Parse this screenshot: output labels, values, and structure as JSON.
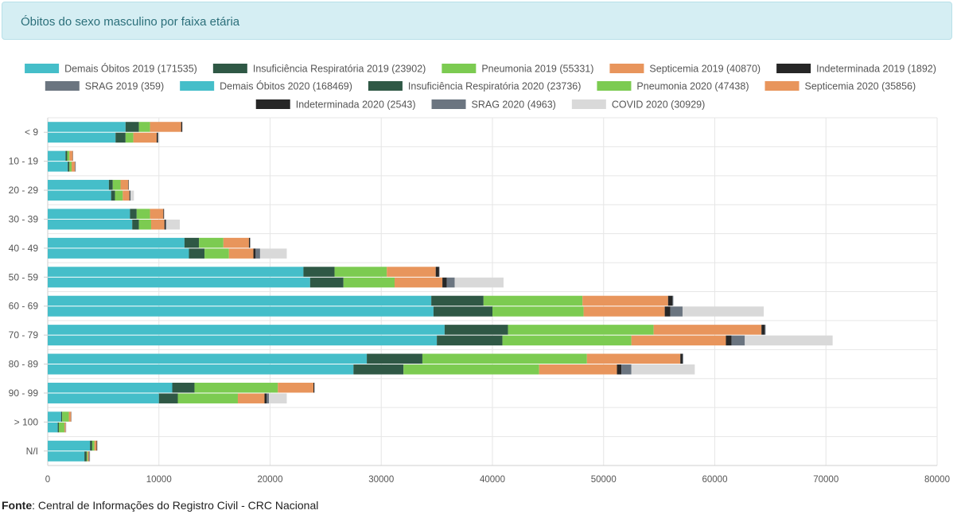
{
  "header": {
    "title": "Óbitos do sexo masculino por faixa etária"
  },
  "footer": {
    "label": "Fonte",
    "text": ": Central de Informações do Registro Civil - CRC Nacional"
  },
  "colors": {
    "demais": "#45bec9",
    "insuf": "#2f5845",
    "pneu": "#7ccb51",
    "septi": "#e8955c",
    "indet": "#262626",
    "srag": "#6b7580",
    "covid": "#d9d9d9"
  },
  "chart_data": {
    "type": "bar",
    "orientation": "horizontal",
    "stacked": true,
    "grid": true,
    "legend_position": "top",
    "xlim": [
      0,
      80000
    ],
    "x_ticks": [
      "0",
      "10000",
      "20000",
      "30000",
      "40000",
      "50000",
      "60000",
      "70000",
      "80000"
    ],
    "categories": [
      "< 9",
      "10 - 19",
      "20 - 29",
      "30 - 39",
      "40 - 49",
      "50 - 59",
      "60 - 69",
      "70 - 79",
      "80 - 89",
      "90 - 99",
      "> 100",
      "N/I"
    ],
    "legend": [
      {
        "label": "Demais Óbitos 2019 (171535)",
        "color_key": "demais"
      },
      {
        "label": "Insuficiência Respiratória 2019 (23902)",
        "color_key": "insuf"
      },
      {
        "label": "Pneumonia 2019 (55331)",
        "color_key": "pneu"
      },
      {
        "label": "Septicemia 2019 (40870)",
        "color_key": "septi"
      },
      {
        "label": "Indeterminada 2019 (1892)",
        "color_key": "indet"
      },
      {
        "label": "SRAG 2019 (359)",
        "color_key": "srag"
      },
      {
        "label": "Demais Óbitos 2020 (168469)",
        "color_key": "demais"
      },
      {
        "label": "Insuficiência Respiratória 2020 (23736)",
        "color_key": "insuf"
      },
      {
        "label": "Pneumonia 2020 (47438)",
        "color_key": "pneu"
      },
      {
        "label": "Septicemia 2020 (35856)",
        "color_key": "septi"
      },
      {
        "label": "Indeterminada 2020 (2543)",
        "color_key": "indet"
      },
      {
        "label": "SRAG 2020 (4963)",
        "color_key": "srag"
      },
      {
        "label": "COVID 2020 (30929)",
        "color_key": "covid"
      }
    ],
    "stacks": [
      {
        "stack": "2019",
        "series": [
          {
            "name": "Demais Óbitos 2019 (171535)",
            "color_key": "demais",
            "values": [
              7000,
              1600,
              5500,
              7400,
              12300,
              23000,
              34500,
              35700,
              28700,
              11200,
              1200,
              3800
            ]
          },
          {
            "name": "Insuficiência Respiratória 2019 (23902)",
            "color_key": "insuf",
            "values": [
              1200,
              150,
              350,
              600,
              1300,
              2800,
              4700,
              5700,
              5000,
              2000,
              100,
              200
            ]
          },
          {
            "name": "Pneumonia 2019 (55331)",
            "color_key": "pneu",
            "values": [
              1000,
              200,
              700,
              1200,
              2200,
              4700,
              8900,
              13100,
              14800,
              7500,
              600,
              200
            ]
          },
          {
            "name": "Septicemia 2019 (40870)",
            "color_key": "septi",
            "values": [
              2800,
              300,
              700,
              1200,
              2300,
              4400,
              7700,
              9700,
              8400,
              3200,
              200,
              200
            ]
          },
          {
            "name": "Indeterminada 2019 (1892)",
            "color_key": "indet",
            "values": [
              100,
              20,
              40,
              60,
              100,
              300,
              400,
              300,
              200,
              80,
              20,
              50
            ]
          },
          {
            "name": "SRAG 2019 (359)",
            "color_key": "srag",
            "values": [
              10,
              5,
              5,
              10,
              20,
              40,
              70,
              70,
              60,
              20,
              5,
              10
            ]
          }
        ]
      },
      {
        "stack": "2020",
        "series": [
          {
            "name": "Demais Óbitos 2020 (168469)",
            "color_key": "demais",
            "values": [
              6100,
              1800,
              5700,
              7600,
              12700,
              23600,
              34700,
              35000,
              27500,
              10000,
              900,
              3300
            ]
          },
          {
            "name": "Insuficiência Respiratória 2020 (23736)",
            "color_key": "insuf",
            "values": [
              900,
              150,
              350,
              600,
              1400,
              3000,
              5300,
              5900,
              4500,
              1700,
              100,
              200
            ]
          },
          {
            "name": "Pneumonia 2020 (47438)",
            "color_key": "pneu",
            "values": [
              700,
              200,
              700,
              1100,
              2200,
              4600,
              8200,
              11600,
              12200,
              5400,
              500,
              100
            ]
          },
          {
            "name": "Septicemia 2020 (35856)",
            "color_key": "septi",
            "values": [
              2100,
              300,
              600,
              1200,
              2200,
              4300,
              7300,
              8500,
              7000,
              2400,
              100,
              100
            ]
          },
          {
            "name": "Indeterminada 2020 (2543)",
            "color_key": "indet",
            "values": [
              100,
              30,
              60,
              100,
              200,
              400,
              500,
              500,
              400,
              200,
              20,
              50
            ]
          },
          {
            "name": "SRAG 2020 (4963)",
            "color_key": "srag",
            "values": [
              50,
              20,
              40,
              80,
              400,
              700,
              1100,
              1200,
              900,
              200,
              10,
              20
            ]
          },
          {
            "name": "COVID 2020 (30929)",
            "color_key": "covid",
            "values": [
              100,
              50,
              300,
              1200,
              2400,
              4400,
              7300,
              7900,
              5700,
              1600,
              50,
              50
            ]
          }
        ]
      }
    ]
  }
}
